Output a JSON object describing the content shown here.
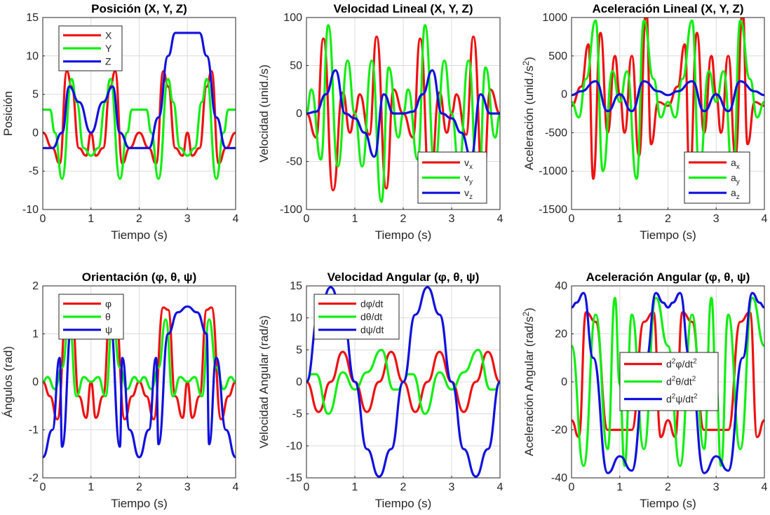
{
  "figure": {
    "background": "#ffffff",
    "colors": {
      "red": "#ee1111",
      "green": "#11ee11",
      "blue": "#1111dd"
    }
  },
  "chart_data": [
    {
      "type": "line",
      "title": "Posición (X, Y, Z)",
      "xlabel": "Tiempo (s)",
      "ylabel": "Posición",
      "xlim": [
        0,
        4
      ],
      "ylim": [
        -10,
        15
      ],
      "xticks": [
        0,
        1,
        2,
        3,
        4
      ],
      "yticks": [
        -10,
        -5,
        0,
        5,
        10,
        15
      ],
      "grid": true,
      "legend_position": "top-left",
      "series": [
        {
          "name": "X",
          "color": "#ee1111",
          "x": [
            0,
            0.2,
            0.35,
            0.5,
            0.6,
            0.75,
            0.9,
            1.0,
            1.1,
            1.25,
            1.4,
            1.5,
            1.65,
            1.8,
            2.0,
            2.2,
            2.35,
            2.5,
            2.6,
            2.75,
            2.9,
            3.0,
            3.1,
            3.25,
            3.4,
            3.5,
            3.65,
            3.8,
            4.0
          ],
          "y": [
            0,
            -2,
            -4,
            8,
            6,
            -2,
            -3,
            0,
            -3,
            -2,
            6,
            8,
            -4,
            -2,
            0,
            -2,
            -4,
            8,
            6,
            -2,
            -3,
            0,
            -3,
            -2,
            6,
            8,
            -4,
            -2,
            0
          ]
        },
        {
          "name": "Y",
          "color": "#11ee11",
          "x": [
            0,
            0.15,
            0.25,
            0.4,
            0.6,
            0.7,
            0.85,
            1.0,
            1.15,
            1.3,
            1.4,
            1.6,
            1.75,
            1.85,
            2.0,
            2.15,
            2.25,
            2.4,
            2.6,
            2.7,
            2.85,
            3.0,
            3.15,
            3.3,
            3.4,
            3.6,
            3.75,
            3.85,
            4.0
          ],
          "y": [
            3,
            3,
            0,
            -6,
            7,
            4,
            -2,
            -3,
            -2,
            4,
            7,
            -6,
            0,
            3,
            3,
            3,
            0,
            -6,
            7,
            4,
            -2,
            -3,
            -2,
            4,
            7,
            -6,
            0,
            3,
            3
          ]
        },
        {
          "name": "Z",
          "color": "#1111dd",
          "x": [
            0,
            0.2,
            0.4,
            0.55,
            0.75,
            1.0,
            1.25,
            1.45,
            1.6,
            1.8,
            2.0,
            2.2,
            2.4,
            2.6,
            2.75,
            2.9,
            3.0,
            3.1,
            3.25,
            3.4,
            3.6,
            3.8,
            4.0
          ],
          "y": [
            -2,
            -2,
            0,
            6,
            4,
            0,
            4,
            6,
            0,
            -2,
            -2,
            -2,
            2,
            10,
            13,
            13,
            13,
            13,
            13,
            10,
            2,
            -2,
            -2
          ]
        }
      ]
    },
    {
      "type": "line",
      "title": "Velocidad Lineal (X, Y, Z)",
      "xlabel": "Tiempo (s)",
      "ylabel": "Velocidad (unid./s)",
      "xlim": [
        0,
        4
      ],
      "ylim": [
        -100,
        100
      ],
      "xticks": [
        0,
        1,
        2,
        3,
        4
      ],
      "yticks": [
        -100,
        -50,
        0,
        50,
        100
      ],
      "grid": true,
      "legend_position": "bottom-right",
      "series": [
        {
          "name": "vx",
          "color": "#ee1111",
          "x": [
            0,
            0.2,
            0.35,
            0.55,
            0.75,
            0.9,
            1.0,
            1.1,
            1.3,
            1.45,
            1.65,
            1.8,
            2.0,
            2.2,
            2.35,
            2.55,
            2.75,
            2.9,
            3.0,
            3.1,
            3.3,
            3.45,
            3.65,
            3.8,
            4.0
          ],
          "y": [
            0,
            -25,
            78,
            -80,
            22,
            -20,
            0,
            20,
            -22,
            80,
            -78,
            25,
            0,
            -25,
            78,
            -80,
            22,
            -20,
            0,
            20,
            -22,
            80,
            -78,
            25,
            0
          ]
        },
        {
          "name": "vy",
          "color": "#11ee11",
          "x": [
            0,
            0.1,
            0.3,
            0.45,
            0.65,
            0.85,
            1.0,
            1.15,
            1.35,
            1.55,
            1.7,
            1.9,
            2.0,
            2.1,
            2.3,
            2.45,
            2.65,
            2.85,
            3.0,
            3.15,
            3.35,
            3.55,
            3.7,
            3.9,
            4.0
          ],
          "y": [
            0,
            25,
            -48,
            92,
            -55,
            55,
            0,
            -55,
            55,
            -92,
            48,
            -25,
            0,
            25,
            -48,
            92,
            -55,
            55,
            0,
            -55,
            55,
            -92,
            48,
            -25,
            0
          ]
        },
        {
          "name": "vz",
          "color": "#1111dd",
          "x": [
            0,
            0.2,
            0.4,
            0.6,
            0.8,
            1.0,
            1.2,
            1.4,
            1.6,
            1.8,
            2.0,
            2.2,
            2.4,
            2.6,
            2.8,
            3.0,
            3.2,
            3.4,
            3.6,
            3.8,
            4.0
          ],
          "y": [
            0,
            2,
            20,
            45,
            0,
            -5,
            -20,
            -45,
            20,
            0,
            0,
            2,
            20,
            45,
            0,
            -5,
            -20,
            -45,
            20,
            0,
            0
          ]
        }
      ]
    },
    {
      "type": "line",
      "title": "Aceleración Lineal (X, Y, Z)",
      "xlabel": "Tiempo (s)",
      "ylabel": "Aceleración  (unid./s²)",
      "xlim": [
        0,
        4
      ],
      "ylim": [
        -1500,
        1000
      ],
      "xticks": [
        0,
        1,
        2,
        3,
        4
      ],
      "yticks": [
        -1500,
        -1000,
        -500,
        0,
        500,
        1000
      ],
      "grid": true,
      "legend_position": "bottom-right",
      "series": [
        {
          "name": "ax",
          "color": "#ee1111",
          "x": [
            0,
            0.2,
            0.35,
            0.45,
            0.6,
            0.75,
            0.9,
            1.0,
            1.1,
            1.25,
            1.4,
            1.55,
            1.65,
            1.8,
            2.0,
            2.2,
            2.35,
            2.45,
            2.6,
            2.75,
            2.9,
            3.0,
            3.1,
            3.25,
            3.4,
            3.55,
            3.65,
            3.8,
            4.0
          ],
          "y": [
            -150,
            100,
            650,
            -1100,
            800,
            -500,
            500,
            0,
            -500,
            500,
            -800,
            1100,
            -650,
            -100,
            -150,
            100,
            650,
            -1100,
            800,
            -500,
            500,
            0,
            -500,
            500,
            -800,
            1100,
            -650,
            -100,
            -150
          ]
        },
        {
          "name": "ay",
          "color": "#11ee11",
          "x": [
            0,
            0.15,
            0.3,
            0.5,
            0.65,
            0.85,
            1.0,
            1.15,
            1.35,
            1.5,
            1.7,
            1.85,
            2.0,
            2.15,
            2.3,
            2.5,
            2.65,
            2.85,
            3.0,
            3.15,
            3.35,
            3.5,
            3.7,
            3.85,
            4.0
          ],
          "y": [
            -100,
            -300,
            200,
            960,
            -1000,
            300,
            -100,
            300,
            -1100,
            960,
            200,
            -300,
            -100,
            -300,
            200,
            960,
            -1000,
            300,
            -100,
            300,
            -1100,
            960,
            200,
            -300,
            -100
          ]
        },
        {
          "name": "az",
          "color": "#1111dd",
          "x": [
            0,
            0.2,
            0.5,
            0.75,
            1.0,
            1.25,
            1.5,
            1.8,
            2.0,
            2.2,
            2.5,
            2.75,
            3.0,
            3.25,
            3.5,
            3.8,
            4.0
          ],
          "y": [
            -10,
            40,
            170,
            -220,
            0,
            -220,
            170,
            40,
            -10,
            40,
            170,
            -220,
            0,
            -220,
            170,
            40,
            -10
          ]
        }
      ]
    },
    {
      "type": "line",
      "title": "Orientación (φ, θ, ψ)",
      "xlabel": "Tiempo (s)",
      "ylabel": "Ángulos (rad)",
      "xlim": [
        0,
        4
      ],
      "ylim": [
        -2,
        2
      ],
      "xticks": [
        0,
        1,
        2,
        3,
        4
      ],
      "yticks": [
        -2,
        -1,
        0,
        1,
        2
      ],
      "grid": true,
      "legend_position": "top-left",
      "series": [
        {
          "name": "φ",
          "color": "#ee1111",
          "x": [
            0,
            0.15,
            0.3,
            0.5,
            0.6,
            0.75,
            0.9,
            1.0,
            1.1,
            1.25,
            1.4,
            1.5,
            1.7,
            1.85,
            2.0,
            2.15,
            2.3,
            2.5,
            2.6,
            2.75,
            2.9,
            3.0,
            3.1,
            3.25,
            3.4,
            3.5,
            3.7,
            3.85,
            4.0
          ],
          "y": [
            0,
            -0.3,
            -0.78,
            1.55,
            1.5,
            -0.3,
            -0.75,
            0,
            -0.75,
            -0.3,
            1.5,
            1.55,
            -0.78,
            -0.3,
            0,
            -0.3,
            -0.78,
            1.55,
            1.5,
            -0.3,
            -0.75,
            0,
            -0.75,
            -0.3,
            1.5,
            1.55,
            -0.78,
            -0.3,
            0
          ]
        },
        {
          "name": "θ",
          "color": "#11ee11",
          "x": [
            0,
            0.1,
            0.25,
            0.4,
            0.55,
            0.7,
            0.85,
            1.0,
            1.15,
            1.3,
            1.45,
            1.6,
            1.75,
            1.9,
            2.0,
            2.1,
            2.25,
            2.4,
            2.55,
            2.7,
            2.85,
            3.0,
            3.15,
            3.3,
            3.45,
            3.6,
            3.75,
            3.9,
            4.0
          ],
          "y": [
            0,
            0.1,
            -0.15,
            0.3,
            1.3,
            -0.3,
            0.1,
            0,
            0.1,
            -0.3,
            1.3,
            0.3,
            -0.15,
            0.1,
            0,
            0.1,
            -0.15,
            0.3,
            1.3,
            -0.3,
            0.1,
            0,
            0.1,
            -0.3,
            1.3,
            0.3,
            -0.15,
            0.1,
            0
          ]
        },
        {
          "name": "ψ",
          "color": "#1111dd",
          "x": [
            0,
            0.2,
            0.35,
            0.4,
            0.6,
            0.8,
            0.95,
            1.05,
            1.2,
            1.4,
            1.6,
            1.65,
            1.8,
            2.0,
            2.2,
            2.35,
            2.4,
            2.6,
            2.8,
            3.0,
            3.2,
            3.4,
            3.45,
            3.6,
            3.8,
            4.0
          ],
          "y": [
            -1.57,
            -1.0,
            0.5,
            -1.35,
            1.2,
            1.3,
            1.5,
            1.5,
            1.3,
            1.2,
            -1.35,
            0.5,
            -1.0,
            -1.57,
            -1.0,
            0.5,
            -1.3,
            1.0,
            1.45,
            1.57,
            1.45,
            1.0,
            -1.3,
            0.5,
            -1.0,
            -1.57
          ]
        }
      ]
    },
    {
      "type": "line",
      "title": "Velocidad Angular (φ, θ, ψ)",
      "xlabel": "Tiempo (s)",
      "ylabel": "Velocidad Angular (rad/s)",
      "xlim": [
        0,
        4
      ],
      "ylim": [
        -15,
        15
      ],
      "xticks": [
        0,
        1,
        2,
        3,
        4
      ],
      "yticks": [
        -15,
        -10,
        -5,
        0,
        5,
        10,
        15
      ],
      "grid": true,
      "legend_position": "top-left",
      "series": [
        {
          "name": "dφ/dt",
          "color": "#ee1111",
          "x": [
            0,
            0.25,
            0.5,
            0.75,
            1.0,
            1.25,
            1.5,
            1.75,
            2.0,
            2.25,
            2.5,
            2.75,
            3.0,
            3.25,
            3.5,
            3.75,
            4.0
          ],
          "y": [
            0,
            -4.7,
            0,
            4.7,
            0,
            -4.7,
            0,
            4.7,
            0,
            -4.7,
            0,
            4.7,
            0,
            -4.7,
            0,
            4.7,
            0
          ]
        },
        {
          "name": "dθ/dt",
          "color": "#11ee11",
          "x": [
            0,
            0.1,
            0.2,
            0.45,
            0.75,
            1.0,
            1.25,
            1.55,
            1.8,
            1.9,
            2.0,
            2.1,
            2.2,
            2.45,
            2.75,
            3.0,
            3.25,
            3.55,
            3.8,
            3.9,
            4.0
          ],
          "y": [
            0,
            1.2,
            1.2,
            -5,
            1.5,
            -1.2,
            1.5,
            5,
            -1.2,
            -1.2,
            0,
            1.2,
            1.2,
            -5,
            1.5,
            -1.2,
            1.5,
            5,
            -1.2,
            -1.2,
            0
          ]
        },
        {
          "name": "dψ/dt",
          "color": "#1111dd",
          "x": [
            0,
            0.25,
            0.5,
            0.75,
            1.0,
            1.25,
            1.5,
            1.75,
            2.0,
            2.25,
            2.5,
            2.75,
            3.0,
            3.25,
            3.5,
            3.75,
            4.0
          ],
          "y": [
            0,
            10.5,
            14.8,
            10.5,
            0,
            -10.5,
            -14.8,
            -10.5,
            0,
            10.5,
            14.8,
            10.5,
            0,
            -10.5,
            -14.8,
            -10.5,
            0
          ]
        }
      ]
    },
    {
      "type": "line",
      "title": "Aceleración Angular (φ, θ, ψ)",
      "xlabel": "Tiempo (s)",
      "ylabel": "Aceleración  Angular  (rad/s²)",
      "xlim": [
        0,
        4
      ],
      "ylim": [
        -40,
        40
      ],
      "xticks": [
        0,
        1,
        2,
        3,
        4
      ],
      "yticks": [
        -40,
        -20,
        0,
        20,
        40
      ],
      "grid": true,
      "legend_position": "center-right",
      "series": [
        {
          "name": "d²φ/dt²",
          "color": "#ee1111",
          "x": [
            0,
            0.15,
            0.3,
            0.5,
            0.75,
            1.0,
            1.25,
            1.5,
            1.7,
            1.85,
            2.0,
            2.15,
            2.3,
            2.5,
            2.75,
            3.0,
            3.25,
            3.5,
            3.7,
            3.85,
            4.0
          ],
          "y": [
            -16,
            -23,
            29,
            25,
            -20,
            -20,
            -20,
            25,
            29,
            -23,
            -16,
            -23,
            29,
            25,
            -20,
            -20,
            -20,
            25,
            29,
            -23,
            -16
          ]
        },
        {
          "name": "d²θ/dt²",
          "color": "#11ee11",
          "x": [
            0,
            0.25,
            0.5,
            0.75,
            0.9,
            1.0,
            1.1,
            1.25,
            1.5,
            1.75,
            2.0,
            2.25,
            2.5,
            2.75,
            2.9,
            3.0,
            3.1,
            3.25,
            3.5,
            3.75,
            4.0
          ],
          "y": [
            15,
            -35,
            28,
            -28,
            35,
            -1,
            -35,
            28,
            -28,
            35,
            15,
            -35,
            28,
            -28,
            35,
            -1,
            -35,
            28,
            -28,
            35,
            15
          ]
        },
        {
          "name": "d²ψ/dt²",
          "color": "#1111dd",
          "x": [
            0,
            0.1,
            0.25,
            0.45,
            0.75,
            1.0,
            1.25,
            1.55,
            1.75,
            1.9,
            2.0,
            2.1,
            2.25,
            2.45,
            2.75,
            3.0,
            3.25,
            3.55,
            3.75,
            3.9,
            4.0
          ],
          "y": [
            31,
            33,
            37,
            10,
            -38,
            -31,
            -37,
            10,
            37,
            33,
            31,
            33,
            37,
            10,
            -38,
            -31,
            -37,
            10,
            37,
            33,
            31
          ]
        }
      ]
    }
  ]
}
